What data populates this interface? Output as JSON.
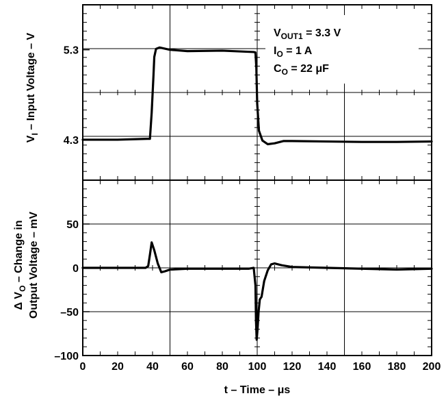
{
  "chart_data": [
    {
      "type": "line",
      "panel": "top",
      "ylabel": "V",
      "ylabel_sub": "I",
      "ylabel_rest": " – Input Voltage – V",
      "yticks": [
        {
          "value": 4.3,
          "label": "4.3"
        },
        {
          "value": 5.3,
          "label": "5.3"
        }
      ],
      "ylim": [
        3.85,
        5.8
      ],
      "xlim": [
        0,
        200
      ],
      "grid": true,
      "annotations": [
        {
          "main": "V",
          "sub": "OUT1",
          "rest": " = 3.3 V"
        },
        {
          "main": "I",
          "sub": "O",
          "rest": " = 1 A"
        },
        {
          "main": "C",
          "sub": "O",
          "rest": " = 22 μF"
        }
      ],
      "series": [
        {
          "x": [
            0,
            20,
            37,
            38.5,
            39.5,
            40.5,
            41,
            42,
            44,
            50,
            60,
            80,
            98,
            99,
            99.5,
            100,
            101,
            103,
            106,
            110,
            115,
            120,
            140,
            160,
            180,
            200
          ],
          "y": [
            4.3,
            4.3,
            4.31,
            4.31,
            4.6,
            5.0,
            5.22,
            5.31,
            5.325,
            5.3,
            5.285,
            5.29,
            5.275,
            5.27,
            5.1,
            4.7,
            4.4,
            4.29,
            4.25,
            4.26,
            4.285,
            4.285,
            4.28,
            4.275,
            4.275,
            4.28
          ]
        }
      ]
    },
    {
      "type": "line",
      "panel": "bottom",
      "ylabel_delta": "Δ",
      "ylabel_line1_main": "V",
      "ylabel_line1_sub": "O",
      "ylabel_line1_rest": " – Change in",
      "ylabel_line2": "Output Voltage – mV",
      "yticks": [
        {
          "value": -100,
          "label": "–100"
        },
        {
          "value": -50,
          "label": "–50"
        },
        {
          "value": 0,
          "label": "0"
        },
        {
          "value": 50,
          "label": "50"
        }
      ],
      "ylim": [
        -100,
        100
      ],
      "xlim": [
        0,
        200
      ],
      "grid": true,
      "xticks": [
        {
          "value": 0,
          "label": "0"
        },
        {
          "value": 20,
          "label": "20"
        },
        {
          "value": 40,
          "label": "40"
        },
        {
          "value": 60,
          "label": "60"
        },
        {
          "value": 80,
          "label": "80"
        },
        {
          "value": 100,
          "label": "100"
        },
        {
          "value": 120,
          "label": "120"
        },
        {
          "value": 140,
          "label": "140"
        },
        {
          "value": 160,
          "label": "160"
        },
        {
          "value": 180,
          "label": "180"
        },
        {
          "value": 200,
          "label": "200"
        }
      ],
      "xlabel": "t – Time – μs",
      "series": [
        {
          "x": [
            0,
            20,
            36,
            37.5,
            38.5,
            39.5,
            41,
            43,
            45,
            47,
            50,
            60,
            80,
            95,
            98,
            99,
            99.3,
            99.7,
            100.2,
            100.8,
            101.5,
            102.5,
            104,
            106,
            108,
            110,
            114,
            120,
            140,
            160,
            180,
            200
          ],
          "y": [
            0,
            0,
            0,
            2,
            15,
            29,
            20,
            5,
            -5,
            -4,
            -2,
            -1,
            -1,
            -1,
            0,
            -20,
            -60,
            -82,
            -70,
            -50,
            -36,
            -33,
            -15,
            -3,
            4,
            5,
            3,
            1,
            0,
            -1,
            -2,
            -1
          ]
        }
      ]
    }
  ]
}
